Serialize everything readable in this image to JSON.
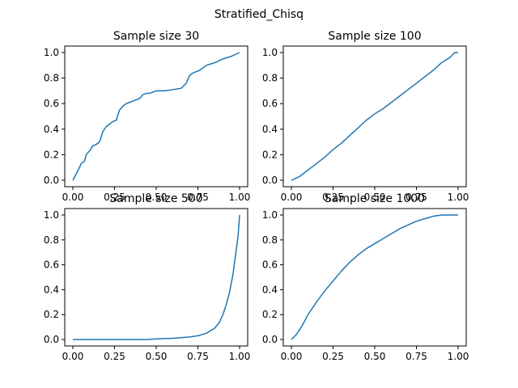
{
  "figure": {
    "suptitle": "Stratified_Chisq"
  },
  "chart_data": [
    {
      "type": "line",
      "title": "Sample size 30",
      "xlim": [
        0,
        1
      ],
      "ylim": [
        0,
        1
      ],
      "xticks": [
        "0.00",
        "0.25",
        "0.50",
        "0.75",
        "1.00"
      ],
      "yticks": [
        "0.0",
        "0.2",
        "0.4",
        "0.6",
        "0.8",
        "1.0"
      ],
      "series": [
        {
          "x": [
            0.0,
            0.02,
            0.04,
            0.05,
            0.07,
            0.08,
            0.1,
            0.12,
            0.14,
            0.16,
            0.18,
            0.2,
            0.22,
            0.24,
            0.26,
            0.28,
            0.3,
            0.32,
            0.34,
            0.36,
            0.38,
            0.4,
            0.42,
            0.44,
            0.46,
            0.48,
            0.5,
            0.55,
            0.6,
            0.65,
            0.68,
            0.7,
            0.72,
            0.74,
            0.76,
            0.78,
            0.8,
            0.85,
            0.9,
            0.95,
            1.0
          ],
          "y": [
            0.0,
            0.05,
            0.1,
            0.13,
            0.15,
            0.2,
            0.23,
            0.27,
            0.28,
            0.3,
            0.38,
            0.42,
            0.44,
            0.46,
            0.47,
            0.55,
            0.58,
            0.6,
            0.61,
            0.62,
            0.63,
            0.64,
            0.67,
            0.68,
            0.68,
            0.69,
            0.7,
            0.7,
            0.71,
            0.72,
            0.76,
            0.82,
            0.84,
            0.85,
            0.86,
            0.88,
            0.9,
            0.92,
            0.95,
            0.97,
            1.0
          ]
        }
      ]
    },
    {
      "type": "line",
      "title": "Sample size 100",
      "xlim": [
        0,
        1
      ],
      "ylim": [
        0,
        1
      ],
      "xticks": [
        "0.00",
        "0.25",
        "0.50",
        "0.75",
        "1.00"
      ],
      "yticks": [
        "0.0",
        "0.2",
        "0.4",
        "0.6",
        "0.8",
        "1.0"
      ],
      "series": [
        {
          "x": [
            0.0,
            0.05,
            0.1,
            0.15,
            0.2,
            0.25,
            0.3,
            0.35,
            0.4,
            0.45,
            0.5,
            0.55,
            0.6,
            0.65,
            0.7,
            0.75,
            0.8,
            0.85,
            0.9,
            0.95,
            0.98,
            1.0
          ],
          "y": [
            0.0,
            0.03,
            0.08,
            0.13,
            0.18,
            0.24,
            0.29,
            0.35,
            0.41,
            0.47,
            0.52,
            0.56,
            0.61,
            0.66,
            0.71,
            0.76,
            0.81,
            0.86,
            0.92,
            0.96,
            1.0,
            1.0
          ]
        }
      ]
    },
    {
      "type": "line",
      "title": "Sample size 500",
      "xlim": [
        0,
        1
      ],
      "ylim": [
        0,
        1
      ],
      "xticks": [
        "0.00",
        "0.25",
        "0.50",
        "0.75",
        "1.00"
      ],
      "yticks": [
        "0.0",
        "0.2",
        "0.4",
        "0.6",
        "0.8",
        "1.0"
      ],
      "series": [
        {
          "x": [
            0.0,
            0.25,
            0.45,
            0.5,
            0.6,
            0.7,
            0.75,
            0.8,
            0.85,
            0.88,
            0.9,
            0.92,
            0.94,
            0.96,
            0.97,
            0.98,
            0.99,
            0.995,
            1.0
          ],
          "y": [
            0.0,
            0.0,
            0.0,
            0.005,
            0.01,
            0.02,
            0.03,
            0.05,
            0.09,
            0.14,
            0.2,
            0.28,
            0.38,
            0.52,
            0.62,
            0.72,
            0.82,
            0.9,
            1.0
          ]
        }
      ]
    },
    {
      "type": "line",
      "title": "Sample size 1000",
      "xlim": [
        0,
        1
      ],
      "ylim": [
        0,
        1
      ],
      "xticks": [
        "0.00",
        "0.25",
        "0.50",
        "0.75",
        "1.00"
      ],
      "yticks": [
        "0.0",
        "0.2",
        "0.4",
        "0.6",
        "0.8",
        "1.0"
      ],
      "series": [
        {
          "x": [
            0.0,
            0.03,
            0.06,
            0.1,
            0.15,
            0.2,
            0.25,
            0.3,
            0.35,
            0.4,
            0.45,
            0.5,
            0.55,
            0.6,
            0.65,
            0.7,
            0.75,
            0.8,
            0.85,
            0.9,
            0.95,
            1.0
          ],
          "y": [
            0.0,
            0.04,
            0.1,
            0.2,
            0.3,
            0.39,
            0.47,
            0.55,
            0.62,
            0.68,
            0.73,
            0.77,
            0.81,
            0.85,
            0.89,
            0.92,
            0.95,
            0.97,
            0.99,
            1.0,
            1.0,
            1.0
          ]
        }
      ]
    }
  ]
}
